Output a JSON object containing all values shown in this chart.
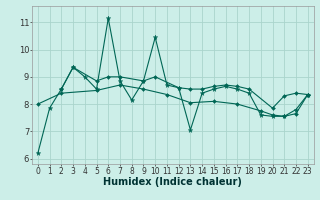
{
  "xlabel": "Humidex (Indice chaleur)",
  "background_color": "#cceee8",
  "grid_color": "#aad4cc",
  "line_color": "#006655",
  "xlim": [
    -0.5,
    23.5
  ],
  "ylim": [
    5.8,
    11.6
  ],
  "yticks": [
    6,
    7,
    8,
    9,
    10,
    11
  ],
  "xticks": [
    0,
    1,
    2,
    3,
    4,
    5,
    6,
    7,
    8,
    9,
    10,
    11,
    12,
    13,
    14,
    15,
    16,
    17,
    18,
    19,
    20,
    21,
    22,
    23
  ],
  "main_x": [
    0,
    1,
    2,
    3,
    4,
    5,
    6,
    7,
    8,
    9,
    10,
    11,
    12,
    13,
    14,
    15,
    16,
    17,
    18,
    19,
    20,
    21,
    22,
    23
  ],
  "main_y": [
    6.2,
    7.85,
    8.55,
    9.35,
    9.0,
    8.55,
    11.15,
    8.85,
    8.15,
    8.85,
    10.45,
    8.7,
    8.6,
    7.05,
    8.4,
    8.55,
    8.65,
    8.55,
    8.4,
    7.6,
    7.55,
    7.55,
    7.8,
    8.35
  ],
  "upper_x": [
    2,
    3,
    5,
    6,
    7,
    9,
    10,
    12,
    13,
    14,
    15,
    16,
    17,
    18,
    20,
    21,
    22,
    23
  ],
  "upper_y": [
    8.55,
    9.35,
    8.85,
    9.0,
    9.0,
    8.85,
    9.0,
    8.6,
    8.55,
    8.55,
    8.65,
    8.7,
    8.65,
    8.55,
    7.85,
    8.3,
    8.4,
    8.35
  ],
  "lower_x": [
    0,
    2,
    5,
    7,
    9,
    11,
    13,
    15,
    17,
    19,
    20,
    21,
    22,
    23
  ],
  "lower_y": [
    8.0,
    8.4,
    8.5,
    8.7,
    8.55,
    8.35,
    8.05,
    8.1,
    8.0,
    7.75,
    7.6,
    7.55,
    7.65,
    8.35
  ],
  "xlabel_fontsize": 7,
  "tick_fontsize": 5.5
}
